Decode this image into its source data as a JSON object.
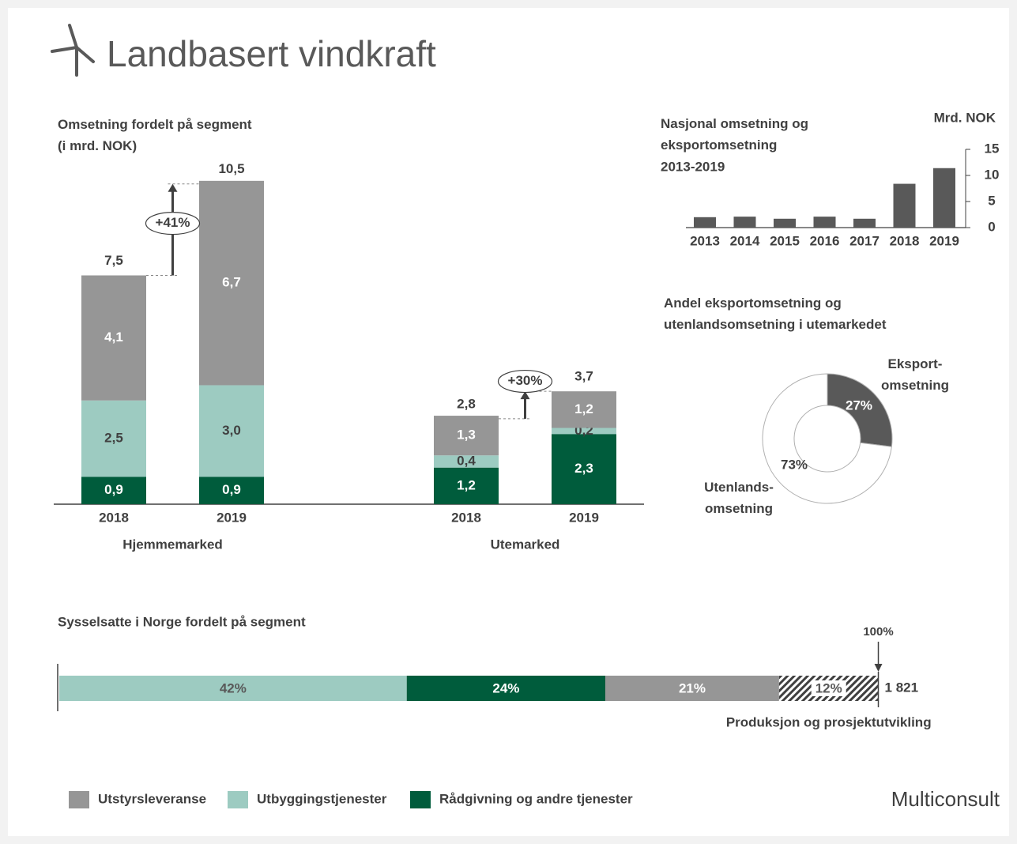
{
  "title": "Landbasert vindkraft",
  "logo": "Multiconsult",
  "chart_data": [
    {
      "type": "stacked_bar",
      "title": "Omsetning fordelt på segment\n(i mrd. NOK)",
      "groups": [
        "Hjemmemarked",
        "Utemarked"
      ],
      "categories": [
        "2018",
        "2019",
        "2018",
        "2019"
      ],
      "series": [
        {
          "name": "Rådgivning og andre tjenester",
          "color": "#005c3c",
          "values": [
            0.9,
            0.9,
            1.2,
            2.3
          ],
          "value_labels": [
            "0,9",
            "0,9",
            "1,2",
            "2,3"
          ]
        },
        {
          "name": "Utbyggingstjenester",
          "color": "#9dcbc1",
          "values": [
            2.5,
            3.0,
            0.4,
            0.2
          ],
          "value_labels": [
            "2,5",
            "3,0",
            "0,4",
            "0,2"
          ]
        },
        {
          "name": "Utstyrsleveranse",
          "color": "#969696",
          "values": [
            4.1,
            6.7,
            1.3,
            1.2
          ],
          "value_labels": [
            "4,1",
            "6,7",
            "1,3",
            "1,2"
          ]
        }
      ],
      "totals": [
        7.5,
        10.5,
        2.8,
        3.7
      ],
      "total_labels": [
        "7,5",
        "10,5",
        "2,8",
        "3,7"
      ],
      "annotations": [
        "+41%",
        "+30%"
      ]
    },
    {
      "type": "bar",
      "title": "Nasjonal omsetning og\neksportomsetning\n2013-2019",
      "y_label": "Mrd. NOK",
      "categories": [
        "2013",
        "2014",
        "2015",
        "2016",
        "2017",
        "2018",
        "2019"
      ],
      "values": [
        2.0,
        2.1,
        1.7,
        2.1,
        1.7,
        8.4,
        11.4
      ],
      "color": "#595959",
      "ylim": [
        0,
        15
      ],
      "yticks": [
        0,
        5,
        10,
        15
      ]
    },
    {
      "type": "donut",
      "title": "Andel eksportomsetning og\nutenlandsomsetning i utemarkedet",
      "categories": [
        "Eksport-\nomsetning",
        "Utenlands-\nomsetning"
      ],
      "values": [
        27,
        73
      ],
      "value_labels": [
        "27%",
        "73%"
      ],
      "colors": [
        "#595959",
        "#ffffff"
      ]
    },
    {
      "type": "stacked_bar_horizontal",
      "title": "Sysselsatte i Norge fordelt på segment",
      "values": [
        42,
        24,
        21,
        12
      ],
      "value_labels": [
        "42%",
        "24%",
        "21%",
        "12%"
      ],
      "colors": [
        "#9dcbc1",
        "#005c3c",
        "#969696",
        "#404040"
      ],
      "hatched": [
        false,
        false,
        false,
        true
      ],
      "labels": [
        null,
        null,
        null,
        "Produksjon og prosjektutvikling"
      ],
      "end_label": "100%",
      "total": 1821,
      "total_label": "1 821"
    }
  ]
}
